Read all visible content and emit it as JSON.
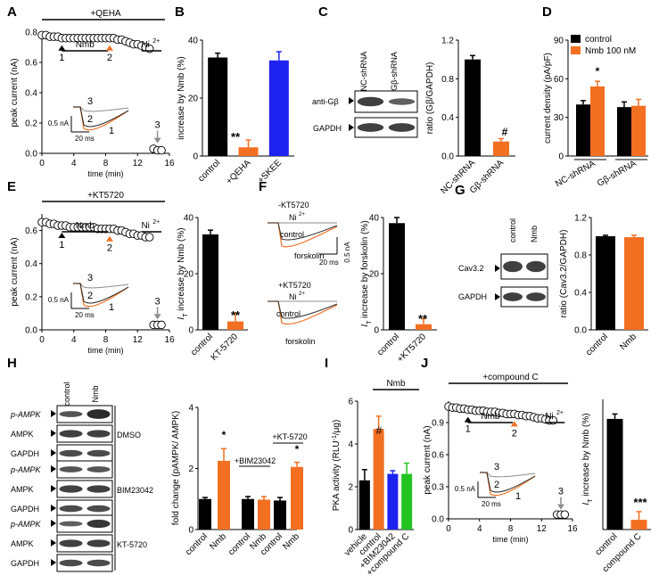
{
  "colors": {
    "black": "#000000",
    "orange": "#f36f21",
    "blue": "#1e22f0",
    "green": "#22c422",
    "gray": "#8c8c8c",
    "band": "#2b2b2b"
  },
  "panels": {
    "A": {
      "letter": "A",
      "header": "+QEHA",
      "nmb": "Nmb",
      "ni": "Ni",
      "ni_sup": "2+",
      "m1": "1",
      "m2": "2",
      "m3": "3",
      "ylabel": "peak current (nA)",
      "xlabel": "time (min)",
      "yticks": [
        "0.0",
        "0.2",
        "0.4",
        "0.6",
        "0.8"
      ],
      "xticks": [
        "0",
        "4",
        "8",
        "12",
        "16"
      ],
      "scale_y": "0.5 nA",
      "scale_x": "20 ms",
      "tr1": "1",
      "tr2": "2",
      "tr3": "3"
    },
    "B": {
      "letter": "B",
      "ylabel": "increase by Nmb (%)",
      "yticks": [
        "0",
        "20",
        "40"
      ],
      "categories": [
        "control",
        "+QEHA",
        "+SKEE"
      ],
      "sig": "**"
    },
    "C": {
      "letter": "C",
      "lane1": "NC-shRNA",
      "lane2": "Gβ-shRNA",
      "row1": "anti-Gβ",
      "row2": "GAPDH",
      "ylabel": "ratio (Gβ/GAPDH)",
      "yticks": [
        "0.0",
        "0.4",
        "0.8",
        "1.2"
      ],
      "categories": [
        "NC-shRNA",
        "Gβ-shRNA"
      ],
      "sig": "#"
    },
    "D": {
      "letter": "D",
      "ylabel": "current density (pA/pF)",
      "yticks": [
        "0",
        "30",
        "60",
        "90"
      ],
      "legend": [
        "control",
        "Nmb 100 nM"
      ],
      "groups": [
        "NC-shRNA",
        "Gβ-shRNA"
      ],
      "sig": "*"
    },
    "E": {
      "letter": "E",
      "header": "+KT5720",
      "nmb": "Nmb",
      "ni": "Ni",
      "ni_sup": "2+",
      "m1": "1",
      "m2": "2",
      "m3": "3",
      "ylabel": "peak current (nA)",
      "xlabel": "time (min)",
      "yticks": [
        "0.0",
        "0.2",
        "0.4",
        "0.6"
      ],
      "xticks": [
        "0",
        "4",
        "8",
        "12",
        "16"
      ],
      "scale_y": "0.5 nA",
      "scale_x": "20 ms",
      "tr1": "1",
      "tr2": "2",
      "tr3": "3",
      "bar_ylabel": "I",
      "bar_ylabel_sub": "T",
      "bar_ylabel_rest": " increase by Nmb (%)",
      "bar_yticks": [
        "0",
        "20",
        "40"
      ],
      "categories": [
        "control",
        "KT-5720"
      ],
      "sig": "**"
    },
    "F": {
      "letter": "F",
      "cond1": "-KT5720",
      "cond2": "+KT5720",
      "ni": "Ni",
      "ni_sup": "2+",
      "ctrl": "control",
      "forsk": "forskolin",
      "scale_x": "20 ms",
      "scale_y": "0.5 nA",
      "bar_ylabel": "I",
      "bar_ylabel_sub": "T",
      "bar_ylabel_rest": " increase by forskolin (%)",
      "bar_yticks": [
        "0",
        "20",
        "40"
      ],
      "categories": [
        "control",
        "+KT5720"
      ],
      "sig": "**"
    },
    "G": {
      "letter": "G",
      "lane1": "control",
      "lane2": "Nmb",
      "row1": "Cav3.2",
      "row2": "GAPDH",
      "ylabel": "ratio (Cav3.2/GAPDH)",
      "yticks": [
        "0.0",
        "0.4",
        "0.8",
        "1.2"
      ],
      "categories": [
        "control",
        "Nmb"
      ]
    },
    "H": {
      "letter": "H",
      "lane1": "control",
      "lane2": "Nmb",
      "rows": [
        "p-AMPK",
        "AMPK",
        "GAPDH"
      ],
      "groups": [
        "DMSO",
        "BIM23042",
        "KT-5720"
      ],
      "ylabel": "fold change (pAMPK/ AMPK)",
      "yticks": [
        "0",
        "2",
        "4"
      ],
      "grp2": "+BIM23042",
      "grp3": "+KT-5720",
      "categories": [
        "control",
        "Nmb",
        "control",
        "Nmb",
        "control",
        "Nmb"
      ],
      "sig": "*"
    },
    "I": {
      "letter": "I",
      "header": "Nmb",
      "ylabel": "PKA activity (RLU",
      "ylabel_sup": "-1",
      "ylabel_rest": "/μg)",
      "yticks": [
        "0",
        "2",
        "4",
        "6"
      ],
      "categories": [
        "vehicle",
        "control",
        "+BIM23042",
        "+compound C"
      ],
      "sig": "#"
    },
    "J": {
      "letter": "J",
      "header": "+compound C",
      "nmb": "Nmb",
      "ni": "Ni",
      "ni_sup": "2+",
      "m1": "1",
      "m2": "2",
      "m3": "3",
      "ylabel": "peak current (nA)",
      "xlabel": "time (min)",
      "yticks": [
        "0.0",
        "0.3",
        "0.6",
        "0.9"
      ],
      "xticks": [
        "0",
        "4",
        "8",
        "12",
        "16"
      ],
      "scale_y": "0.5 nA",
      "scale_x": "20 ms",
      "tr1": "1",
      "tr2": "2",
      "tr3": "3",
      "bar_ylabel": "I",
      "bar_ylabel_sub": "T",
      "bar_ylabel_rest": " increase by Nmb (%)",
      "categories": [
        "control",
        "compound C"
      ],
      "sig": "***"
    }
  },
  "chart_data": [
    {
      "panel": "A",
      "type": "scatter",
      "xlabel": "time (min)",
      "ylabel": "peak current (nA)",
      "xlim": [
        0,
        16
      ],
      "ylim": [
        0,
        0.8
      ],
      "x": [
        0,
        0.5,
        1,
        1.5,
        2,
        2.5,
        3,
        3.5,
        4,
        4.5,
        5,
        5.5,
        6,
        6.5,
        7,
        7.5,
        8,
        8.5,
        9,
        9.5,
        10,
        10.5,
        11,
        11.5,
        12,
        12.5,
        13,
        13.5,
        14,
        14.5,
        15
      ],
      "y": [
        0.78,
        0.78,
        0.77,
        0.77,
        0.77,
        0.76,
        0.76,
        0.76,
        0.76,
        0.76,
        0.76,
        0.76,
        0.76,
        0.76,
        0.76,
        0.76,
        0.76,
        0.76,
        0.76,
        0.75,
        0.75,
        0.74,
        0.73,
        0.72,
        0.72,
        0.71,
        0.7,
        0.69,
        0.03,
        0.02,
        0.02
      ]
    },
    {
      "panel": "B",
      "type": "bar",
      "ylabel": "increase by Nmb (%)",
      "ylim": [
        0,
        40
      ],
      "categories": [
        "control",
        "+QEHA",
        "+SKEE"
      ],
      "values": [
        34,
        3,
        33
      ],
      "errors": [
        1.5,
        2.5,
        3
      ]
    },
    {
      "panel": "C",
      "type": "bar",
      "ylabel": "ratio (Gβ/GAPDH)",
      "ylim": [
        0,
        1.2
      ],
      "categories": [
        "NC-shRNA",
        "Gβ-shRNA"
      ],
      "values": [
        1.0,
        0.15
      ],
      "errors": [
        0.04,
        0.03
      ]
    },
    {
      "panel": "D",
      "type": "bar",
      "ylabel": "current density (pA/pF)",
      "ylim": [
        0,
        90
      ],
      "categories": [
        "NC-shRNA",
        "Gβ-shRNA"
      ],
      "series": [
        {
          "name": "control",
          "values": [
            40,
            38
          ],
          "errors": [
            3,
            4
          ]
        },
        {
          "name": "Nmb 100 nM",
          "values": [
            54,
            39
          ],
          "errors": [
            4,
            5
          ]
        }
      ]
    },
    {
      "panel": "E",
      "type": "scatter",
      "xlabel": "time (min)",
      "ylabel": "peak current (nA)",
      "xlim": [
        0,
        16
      ],
      "ylim": [
        0,
        0.7
      ],
      "x": [
        0,
        0.5,
        1,
        1.5,
        2,
        2.5,
        3,
        3.5,
        4,
        4.5,
        5,
        5.5,
        6,
        6.5,
        7,
        7.5,
        8,
        8.5,
        9,
        9.5,
        10,
        10.5,
        11,
        11.5,
        12,
        12.5,
        13,
        13.5,
        14,
        14.5,
        15
      ],
      "y": [
        0.65,
        0.65,
        0.64,
        0.64,
        0.63,
        0.63,
        0.63,
        0.62,
        0.62,
        0.62,
        0.62,
        0.62,
        0.62,
        0.62,
        0.61,
        0.61,
        0.61,
        0.61,
        0.61,
        0.6,
        0.6,
        0.59,
        0.58,
        0.58,
        0.57,
        0.57,
        0.56,
        0.56,
        0.03,
        0.03,
        0.03
      ]
    },
    {
      "panel": "E",
      "type": "bar",
      "ylabel": "IT increase by Nmb (%)",
      "ylim": [
        0,
        40
      ],
      "categories": [
        "control",
        "KT-5720"
      ],
      "values": [
        34,
        3
      ],
      "errors": [
        1.5,
        3
      ]
    },
    {
      "panel": "F",
      "type": "bar",
      "ylabel": "IT increase by forskolin (%)",
      "ylim": [
        0,
        40
      ],
      "categories": [
        "control",
        "+KT5720"
      ],
      "values": [
        38,
        2
      ],
      "errors": [
        2,
        2
      ]
    },
    {
      "panel": "G",
      "type": "bar",
      "ylabel": "ratio (Cav3.2/GAPDH)",
      "ylim": [
        0,
        1.2
      ],
      "categories": [
        "control",
        "Nmb"
      ],
      "values": [
        1.0,
        0.99
      ],
      "errors": [
        0.01,
        0.02
      ]
    },
    {
      "panel": "H",
      "type": "bar",
      "ylabel": "fold change (pAMPK/ AMPK)",
      "ylim": [
        0,
        4
      ],
      "categories": [
        "control",
        "Nmb",
        "control",
        "Nmb",
        "control",
        "Nmb"
      ],
      "values": [
        1.0,
        2.25,
        1.0,
        0.98,
        0.95,
        2.05
      ],
      "errors": [
        0.05,
        0.4,
        0.08,
        0.1,
        0.1,
        0.15
      ]
    },
    {
      "panel": "I",
      "type": "bar",
      "ylabel": "PKA activity (RLU-1/μg)",
      "ylim": [
        0,
        6
      ],
      "categories": [
        "vehicle",
        "control",
        "+BIM23042",
        "+compound C"
      ],
      "values": [
        2.3,
        4.7,
        2.6,
        2.6
      ],
      "errors": [
        0.5,
        0.6,
        0.15,
        0.5
      ]
    },
    {
      "panel": "J",
      "type": "scatter",
      "xlabel": "time (min)",
      "ylabel": "peak current (nA)",
      "xlim": [
        0,
        16
      ],
      "ylim": [
        0,
        1.1
      ],
      "x": [
        0,
        0.5,
        1,
        1.5,
        2,
        2.5,
        3,
        3.5,
        4,
        4.5,
        5,
        5.5,
        6,
        6.5,
        7,
        7.5,
        8,
        8.5,
        9,
        9.5,
        10,
        10.5,
        11,
        11.5,
        12,
        12.5,
        13,
        13.5,
        14,
        14.5,
        15
      ],
      "y": [
        1.05,
        1.04,
        1.04,
        1.03,
        1.03,
        1.02,
        1.02,
        1.01,
        1.01,
        1.01,
        1.0,
        1.0,
        1.0,
        0.99,
        0.99,
        0.98,
        0.98,
        0.98,
        0.97,
        0.97,
        0.96,
        0.96,
        0.95,
        0.94,
        0.94,
        0.93,
        0.92,
        0.92,
        0.04,
        0.04,
        0.04
      ]
    },
    {
      "panel": "J",
      "type": "bar",
      "ylabel": "IT increase by Nmb (%)",
      "ylim": [
        0,
        40
      ],
      "categories": [
        "control",
        "compound C"
      ],
      "values": [
        34,
        3
      ],
      "errors": [
        1.5,
        2.5
      ]
    }
  ]
}
